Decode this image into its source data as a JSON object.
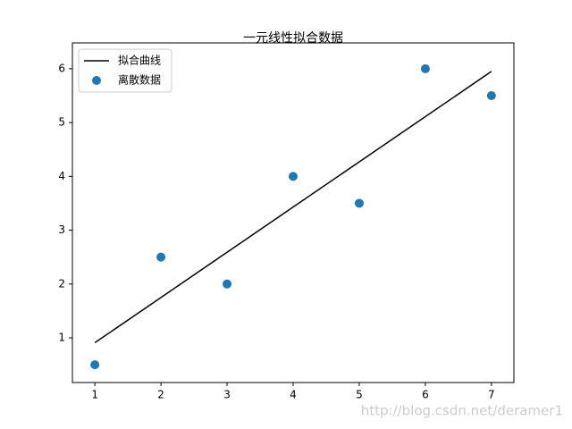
{
  "chart_data": {
    "type": "scatter",
    "title": "一元线性拟合数据",
    "x": [
      1,
      2,
      3,
      4,
      5,
      6,
      7
    ],
    "series": [
      {
        "name": "拟合曲线",
        "type": "line",
        "color": "#000000",
        "values": [
          0.91,
          1.75,
          2.59,
          3.43,
          4.27,
          5.11,
          5.95
        ]
      },
      {
        "name": "离散数据",
        "type": "scatter",
        "color": "#1f77b4",
        "values": [
          0.5,
          2.5,
          2,
          4,
          3.5,
          6,
          5.5
        ]
      }
    ],
    "xlim": [
      0.66,
      7.34
    ],
    "ylim": [
      0.17,
      6.48
    ],
    "xticks": [
      1,
      2,
      3,
      4,
      5,
      6,
      7
    ],
    "yticks": [
      1,
      2,
      3,
      4,
      5,
      6
    ],
    "grid": false,
    "legend": "upper-left",
    "watermark": "http://blog.csdn.net/deramer1"
  }
}
